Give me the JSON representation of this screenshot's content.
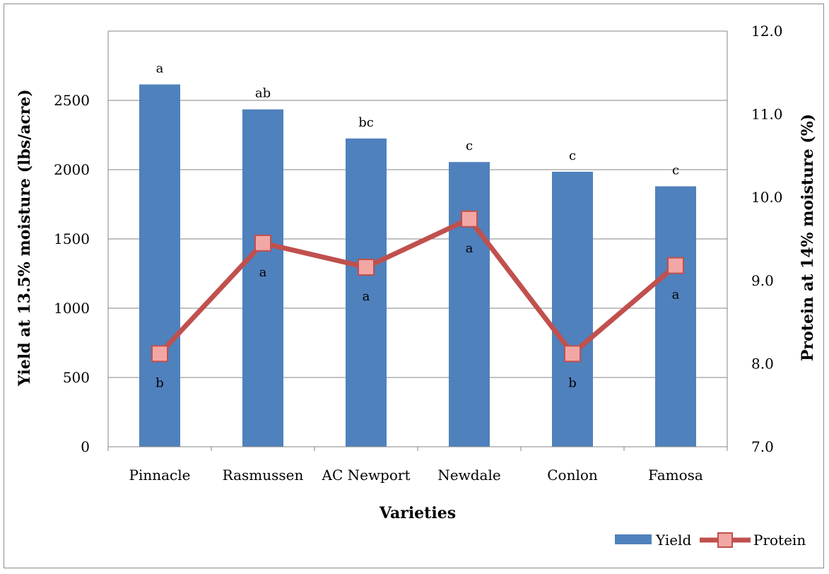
{
  "chart_data": {
    "type": "bar",
    "categories": [
      "Pinnacle",
      "Rasmussen",
      "AC Newport",
      "Newdale",
      "Conlon",
      "Famosa"
    ],
    "xlabel": "Varieties",
    "ylabel": "Yield at 13.5% moisture (lbs/acre)",
    "y2label": "Protein at 14% moisture (%)",
    "ylim": [
      0,
      3000
    ],
    "yticks": [
      "0",
      "500",
      "1000",
      "1500",
      "2000",
      "2500"
    ],
    "y2lim": [
      7.0,
      12.0
    ],
    "y2ticks": [
      "7.0",
      "8.0",
      "9.0",
      "10.0",
      "11.0",
      "12.0"
    ],
    "grid": true,
    "legend_position": "bottom-right",
    "series": [
      {
        "name": "Yield",
        "type": "bar",
        "axis": "left",
        "color": "#4f81bd",
        "values": [
          2615,
          2435,
          2225,
          2055,
          1985,
          1880
        ],
        "labels": [
          "a",
          "ab",
          "bc",
          "c",
          "c",
          "c"
        ]
      },
      {
        "name": "Protein",
        "type": "line",
        "axis": "right",
        "color": "#c0504d",
        "marker_fill": "#f2a7a5",
        "values": [
          8.12,
          9.45,
          9.16,
          9.74,
          8.12,
          9.18
        ],
        "labels": [
          "b",
          "a",
          "a",
          "a",
          "b",
          "a"
        ]
      }
    ]
  }
}
